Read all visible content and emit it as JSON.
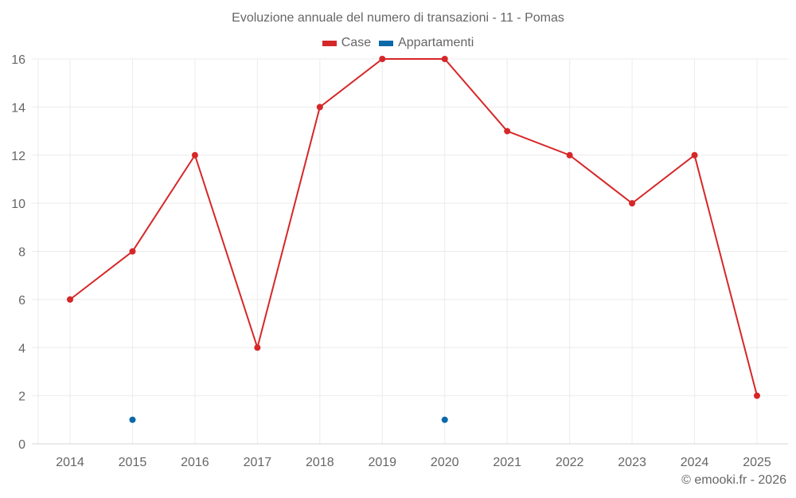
{
  "chart": {
    "title": "Evoluzione annuale del numero di transazioni - 11 - Pomas",
    "footer": "© emooki.fr - 2026"
  },
  "legend": [
    {
      "label": "Case",
      "color": "#d62728"
    },
    {
      "label": "Appartamenti",
      "color": "#0a69a8"
    }
  ],
  "colors": {
    "grid": "#ebebeb",
    "axis": "#d6d6d6",
    "text": "#666666"
  },
  "chart_data": {
    "type": "line",
    "title": "Evoluzione annuale del numero di transazioni - 11 - Pomas",
    "xlabel": "",
    "ylabel": "",
    "categories": [
      "2014",
      "2015",
      "2016",
      "2017",
      "2018",
      "2019",
      "2020",
      "2021",
      "2022",
      "2023",
      "2024",
      "2025"
    ],
    "series": [
      {
        "name": "Case",
        "color": "#d62728",
        "values": [
          6,
          8,
          12,
          4,
          14,
          16,
          16,
          13,
          12,
          10,
          12,
          2
        ]
      },
      {
        "name": "Appartamenti",
        "color": "#0a69a8",
        "values": [
          null,
          1,
          null,
          null,
          null,
          null,
          1,
          null,
          null,
          null,
          null,
          null
        ]
      }
    ],
    "yticks": [
      0,
      2,
      4,
      6,
      8,
      10,
      12,
      14,
      16
    ],
    "ylim": [
      0,
      16
    ],
    "grid": true,
    "legend_position": "top"
  }
}
